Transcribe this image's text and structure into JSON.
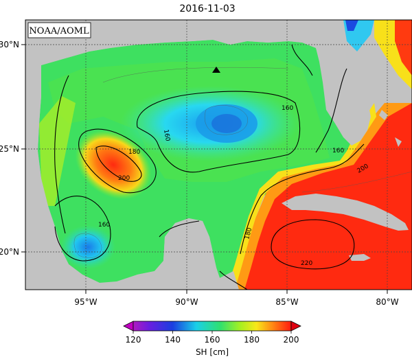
{
  "date_title": "2016-11-03",
  "source_label": "NOAA/AOML",
  "lon_ticks": [
    "95°W",
    "90°W",
    "85°W",
    "80°W"
  ],
  "lat_ticks": [
    "30°N",
    "25°N",
    "20°N"
  ],
  "contour_labels": [
    "160",
    "160",
    "160",
    "160",
    "180",
    "200",
    "200",
    "180",
    "220"
  ],
  "colorbar": {
    "label": "SH [cm]",
    "ticks": [
      "120",
      "140",
      "160",
      "180",
      "200"
    ],
    "min": 120,
    "max": 200
  },
  "colors": {
    "land": "#c2c2c2",
    "low": "#1a6fe0",
    "mid": "#2fe070",
    "high": "#ff2a10",
    "marker": "#000000"
  },
  "marker_icon": "triangle-station-marker"
}
